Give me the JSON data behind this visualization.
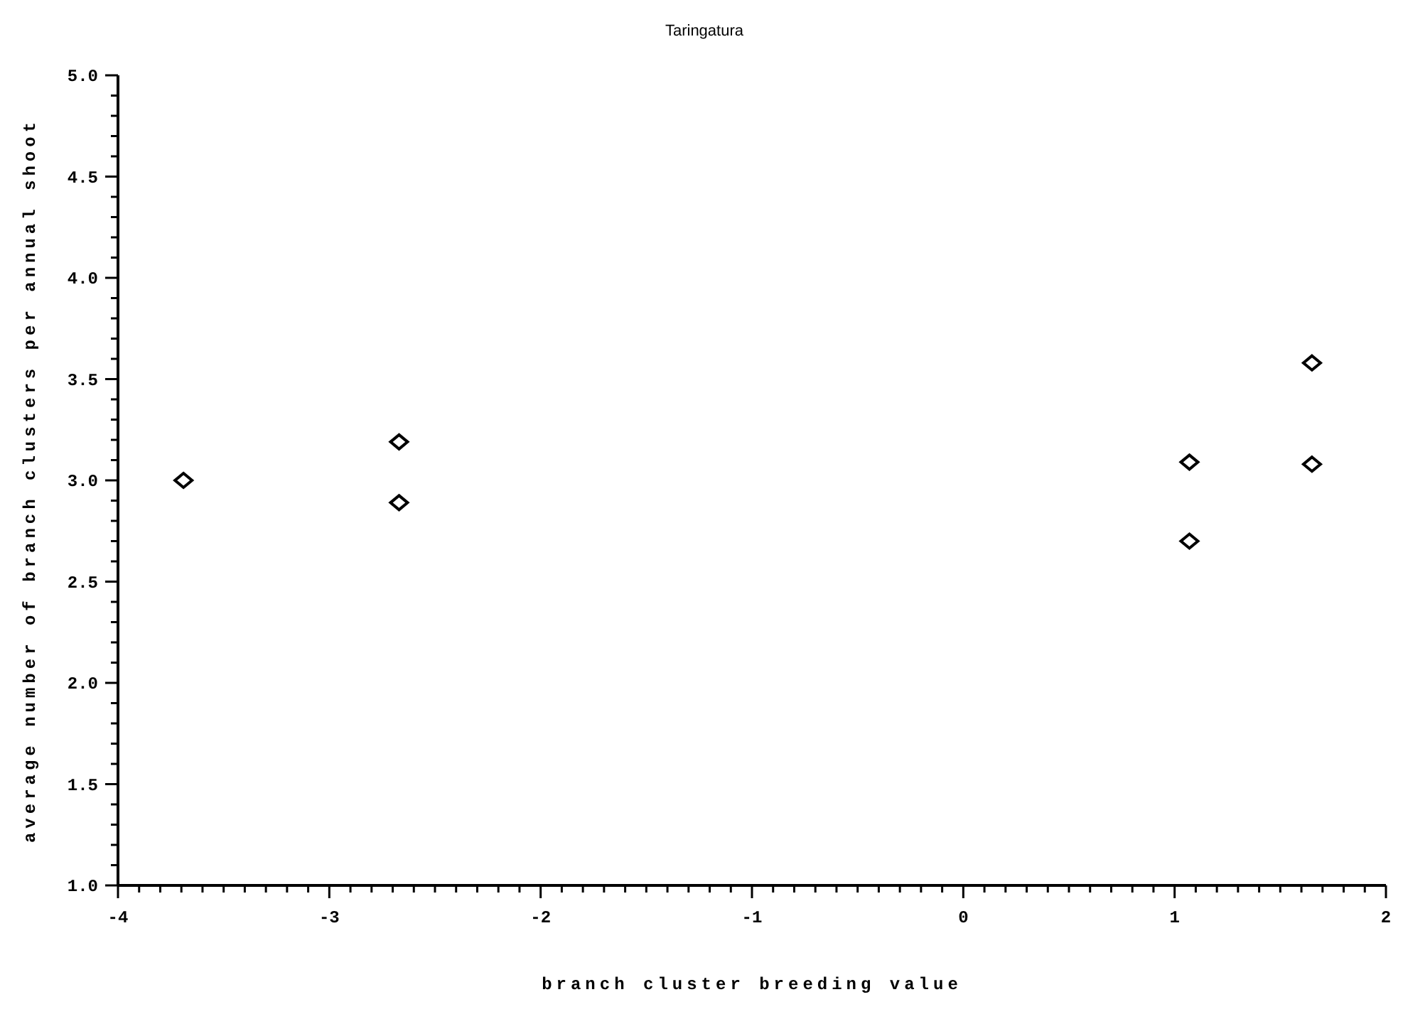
{
  "chart_data": {
    "type": "scatter",
    "title": "Taringatura",
    "xlabel": "branch cluster breeding value",
    "ylabel": "average number of branch clusters per annual shoot",
    "x": [
      -3.69,
      -2.67,
      -2.67,
      1.07,
      1.07,
      1.65,
      1.65
    ],
    "values": [
      3.0,
      3.19,
      2.89,
      3.09,
      2.7,
      3.58,
      3.08
    ],
    "color": "#000000",
    "marker": "diamond",
    "grid": false,
    "legend": false,
    "xlim": [
      -4,
      2
    ],
    "ylim": [
      1,
      5
    ],
    "xticks": [
      -4,
      {
        "value": -3.9,
        "label": null
      },
      {
        "value": -3.8,
        "label": null
      },
      {
        "value": -3.7,
        "label": null
      },
      {
        "value": -3.6,
        "label": null
      },
      {
        "value": -3.5,
        "label": null
      },
      {
        "value": -3.4,
        "label": null
      },
      {
        "value": -3.3,
        "label": null
      },
      {
        "value": -3.2,
        "label": null
      },
      {
        "value": -3.1,
        "label": null
      },
      -3,
      {
        "value": -2.9,
        "label": null
      },
      {
        "value": -2.8,
        "label": null
      },
      {
        "value": -2.7,
        "label": null
      },
      {
        "value": -2.6,
        "label": null
      },
      {
        "value": -2.5,
        "label": null
      },
      {
        "value": -2.4,
        "label": null
      },
      {
        "value": -2.3,
        "label": null
      },
      {
        "value": -2.2,
        "label": null
      },
      {
        "value": -2.1,
        "label": null
      },
      -2,
      {
        "value": -1.9,
        "label": null
      },
      {
        "value": -1.8,
        "label": null
      },
      {
        "value": -1.7,
        "label": null
      },
      {
        "value": -1.6,
        "label": null
      },
      {
        "value": -1.5,
        "label": null
      },
      {
        "value": -1.4,
        "label": null
      },
      {
        "value": -1.3,
        "label": null
      },
      {
        "value": -1.2,
        "label": null
      },
      {
        "value": -1.1,
        "label": null
      },
      -1,
      {
        "value": -0.9,
        "label": null
      },
      {
        "value": -0.8,
        "label": null
      },
      {
        "value": -0.7,
        "label": null
      },
      {
        "value": -0.6,
        "label": null
      },
      {
        "value": -0.5,
        "label": null
      },
      {
        "value": -0.4,
        "label": null
      },
      {
        "value": -0.3,
        "label": null
      },
      {
        "value": -0.2,
        "label": null
      },
      {
        "value": -0.1,
        "label": null
      },
      0,
      {
        "value": 0.1,
        "label": null
      },
      {
        "value": 0.2,
        "label": null
      },
      {
        "value": 0.3,
        "label": null
      },
      {
        "value": 0.4,
        "label": null
      },
      {
        "value": 0.5,
        "label": null
      },
      {
        "value": 0.6,
        "label": null
      },
      {
        "value": 0.7,
        "label": null
      },
      {
        "value": 0.8,
        "label": null
      },
      {
        "value": 0.9,
        "label": null
      },
      1,
      {
        "value": 1.1,
        "label": null
      },
      {
        "value": 1.2,
        "label": null
      },
      {
        "value": 1.3,
        "label": null
      },
      {
        "value": 1.4,
        "label": null
      },
      {
        "value": 1.5,
        "label": null
      },
      {
        "value": 1.6,
        "label": null
      },
      {
        "value": 1.7,
        "label": null
      },
      {
        "value": 1.8,
        "label": null
      },
      {
        "value": 1.9,
        "label": null
      },
      2
    ],
    "yticks": [
      {
        "value": 1,
        "label": "1.0"
      },
      {
        "value": 1.1,
        "label": null
      },
      {
        "value": 1.2,
        "label": null
      },
      {
        "value": 1.3,
        "label": null
      },
      {
        "value": 1.4,
        "label": null
      },
      1.5,
      {
        "value": 1.6,
        "label": null
      },
      {
        "value": 1.7,
        "label": null
      },
      {
        "value": 1.8,
        "label": null
      },
      {
        "value": 1.9,
        "label": null
      },
      {
        "value": 2,
        "label": "2.0"
      },
      {
        "value": 2.1,
        "label": null
      },
      {
        "value": 2.2,
        "label": null
      },
      {
        "value": 2.3,
        "label": null
      },
      {
        "value": 2.4,
        "label": null
      },
      2.5,
      {
        "value": 2.6,
        "label": null
      },
      {
        "value": 2.7,
        "label": null
      },
      {
        "value": 2.8,
        "label": null
      },
      {
        "value": 2.9,
        "label": null
      },
      {
        "value": 3,
        "label": "3.0"
      },
      {
        "value": 3.1,
        "label": null
      },
      {
        "value": 3.2,
        "label": null
      },
      {
        "value": 3.3,
        "label": null
      },
      {
        "value": 3.4,
        "label": null
      },
      3.5,
      {
        "value": 3.6,
        "label": null
      },
      {
        "value": 3.7,
        "label": null
      },
      {
        "value": 3.8,
        "label": null
      },
      {
        "value": 3.9,
        "label": null
      },
      {
        "value": 4,
        "label": "4.0"
      },
      {
        "value": 4.1,
        "label": null
      },
      {
        "value": 4.2,
        "label": null
      },
      {
        "value": 4.3,
        "label": null
      },
      {
        "value": 4.4,
        "label": null
      },
      4.5,
      {
        "value": 4.6,
        "label": null
      },
      {
        "value": 4.7,
        "label": null
      },
      {
        "value": 4.8,
        "label": null
      },
      {
        "value": 4.9,
        "label": null
      },
      {
        "value": 5,
        "label": "5.0"
      }
    ]
  }
}
